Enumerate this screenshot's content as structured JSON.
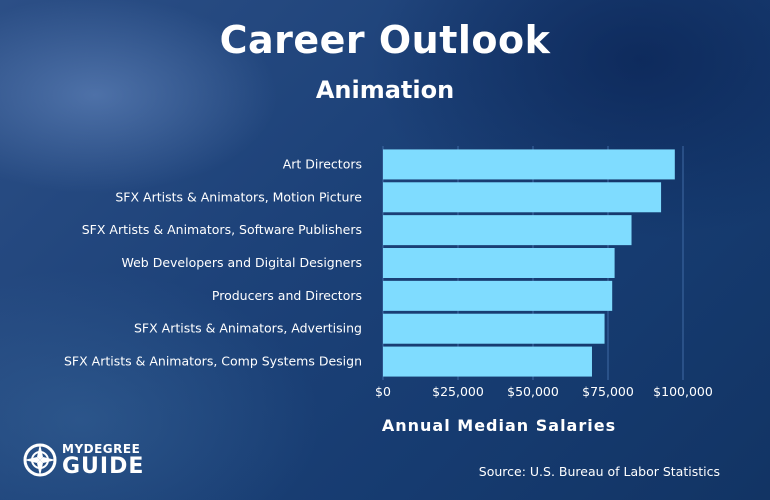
{
  "colors": {
    "bar": "#7fdcff",
    "grid": "#3f6aa5",
    "text": "#ffffff"
  },
  "chart_data": {
    "type": "bar",
    "orientation": "horizontal",
    "title": "Career Outlook",
    "subtitle": "Animation",
    "xlabel": "Annual Median Salaries",
    "categories": [
      "Art Directors",
      "SFX Artists & Animators, Motion Picture",
      "SFX Artists & Animators, Software Publishers",
      "Web Developers and Digital Designers",
      "Producers and Directors",
      "SFX Artists & Animators, Advertising",
      "SFX Artists & Animators, Comp Systems Design"
    ],
    "values": [
      97270,
      92690,
      82840,
      77200,
      76400,
      73850,
      69660
    ],
    "xlim": [
      0,
      100000
    ],
    "xticks": [
      0,
      25000,
      50000,
      75000,
      100000
    ],
    "xtick_labels": [
      "$0",
      "$25,000",
      "$50,000",
      "$75,000",
      "$100,000"
    ],
    "grid": "vertical",
    "source": "Source: U.S. Bureau of Labor Statistics"
  },
  "logo": {
    "line1": "MYDEGREE",
    "line2": "GUIDE"
  }
}
